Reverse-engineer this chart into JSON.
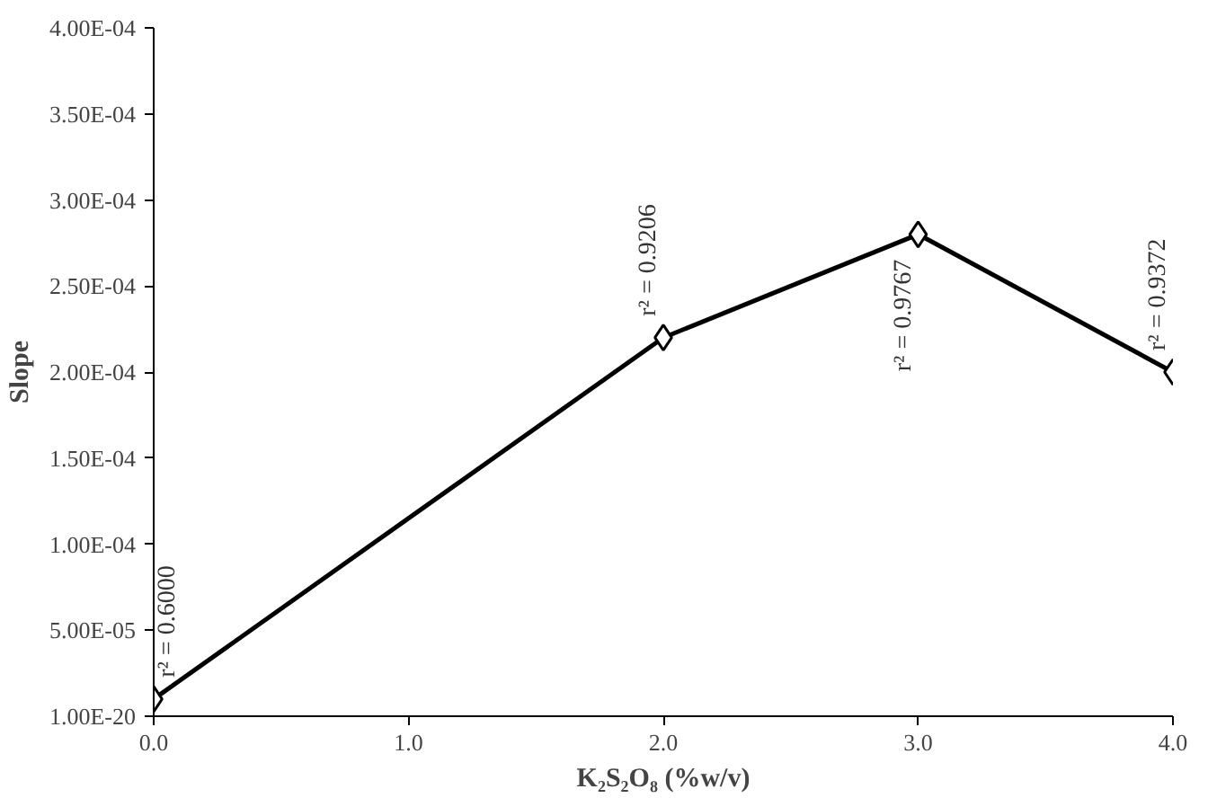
{
  "chart_data": {
    "type": "line",
    "xlabel": "K₂S₂O₈ (%w/v)",
    "ylabel": "Slope",
    "x": [
      0,
      2,
      3,
      4
    ],
    "series": [
      {
        "color": "#000000",
        "values": [
          1e-05,
          0.00022,
          0.00028,
          0.0002
        ]
      }
    ],
    "marker": "diamond",
    "line_style": "solid",
    "grid": false,
    "xlim": [
      0,
      4
    ],
    "xticks": [
      {
        "value": 0,
        "label": "0.0"
      },
      {
        "value": 1,
        "label": "1.0"
      },
      {
        "value": 2,
        "label": "2.0"
      },
      {
        "value": 3,
        "label": "3.0"
      },
      {
        "value": 4,
        "label": "4.0"
      }
    ],
    "ylim": [
      1e-20,
      0.0004
    ],
    "yticks": [
      {
        "value": 1e-20,
        "label": "1.00E-20"
      },
      {
        "value": 5e-05,
        "label": "5.00E-05"
      },
      {
        "value": 0.0001,
        "label": "1.00E-04"
      },
      {
        "value": 0.00015,
        "label": "1.50E-04"
      },
      {
        "value": 0.0002,
        "label": "2.00E-04"
      },
      {
        "value": 0.00025,
        "label": "2.50E-04"
      },
      {
        "value": 0.0003,
        "label": "3.00E-04"
      },
      {
        "value": 0.00035,
        "label": "3.50E-04"
      },
      {
        "value": 0.0004,
        "label": "4.00E-04"
      }
    ],
    "annotations": [
      {
        "text": "r² = 0.6000",
        "x": 0,
        "y": 1e-05
      },
      {
        "text": "r² = 0.9206",
        "x": 2,
        "y": 0.00022
      },
      {
        "text": "r² = 0.9767",
        "x": 3,
        "y": 0.00028
      },
      {
        "text": "r² = 0.9372",
        "x": 4,
        "y": 0.0002
      }
    ]
  }
}
